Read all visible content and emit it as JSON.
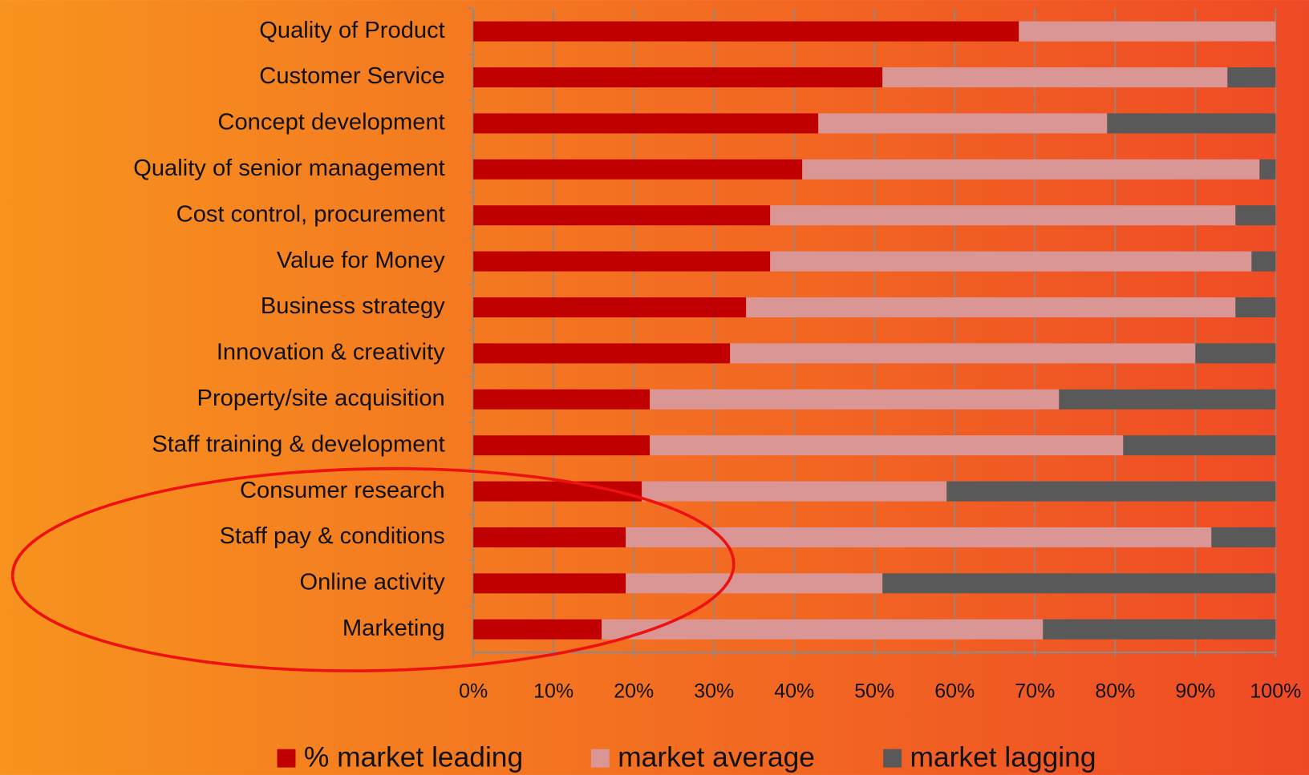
{
  "chart_data": {
    "type": "stacked-barh",
    "categories": [
      "Quality of Product",
      "Customer Service",
      "Concept development",
      "Quality of senior management",
      "Cost control, procurement",
      "Value for Money",
      "Business strategy",
      "Innovation & creativity",
      "Property/site acquisition",
      "Staff training & development",
      "Consumer research",
      "Staff pay & conditions",
      "Online activity",
      "Marketing"
    ],
    "series": [
      {
        "name": "% market leading",
        "color": "#c00000",
        "values": [
          68,
          51,
          43,
          41,
          37,
          37,
          34,
          32,
          22,
          22,
          21,
          19,
          19,
          16
        ]
      },
      {
        "name": "market average",
        "color": "#d99694",
        "values": [
          32,
          43,
          36,
          57,
          58,
          60,
          61,
          58,
          51,
          59,
          38,
          73,
          32,
          55
        ]
      },
      {
        "name": "market lagging",
        "color": "#595959",
        "values": [
          0,
          6,
          21,
          2,
          5,
          3,
          5,
          10,
          27,
          19,
          41,
          8,
          49,
          29
        ]
      }
    ],
    "xlim": [
      0,
      100
    ],
    "xticks": [
      {
        "value": 0,
        "label": "0%"
      },
      {
        "value": 10,
        "label": "10%"
      },
      {
        "value": 20,
        "label": "20%"
      },
      {
        "value": 30,
        "label": "30%"
      },
      {
        "value": 40,
        "label": "40%"
      },
      {
        "value": 50,
        "label": "50%"
      },
      {
        "value": 60,
        "label": "60%"
      },
      {
        "value": 70,
        "label": "70%"
      },
      {
        "value": 80,
        "label": "80%"
      },
      {
        "value": 90,
        "label": "90%"
      },
      {
        "value": 100,
        "label": "100%"
      }
    ],
    "grid": true,
    "legend": "bottom"
  }
}
